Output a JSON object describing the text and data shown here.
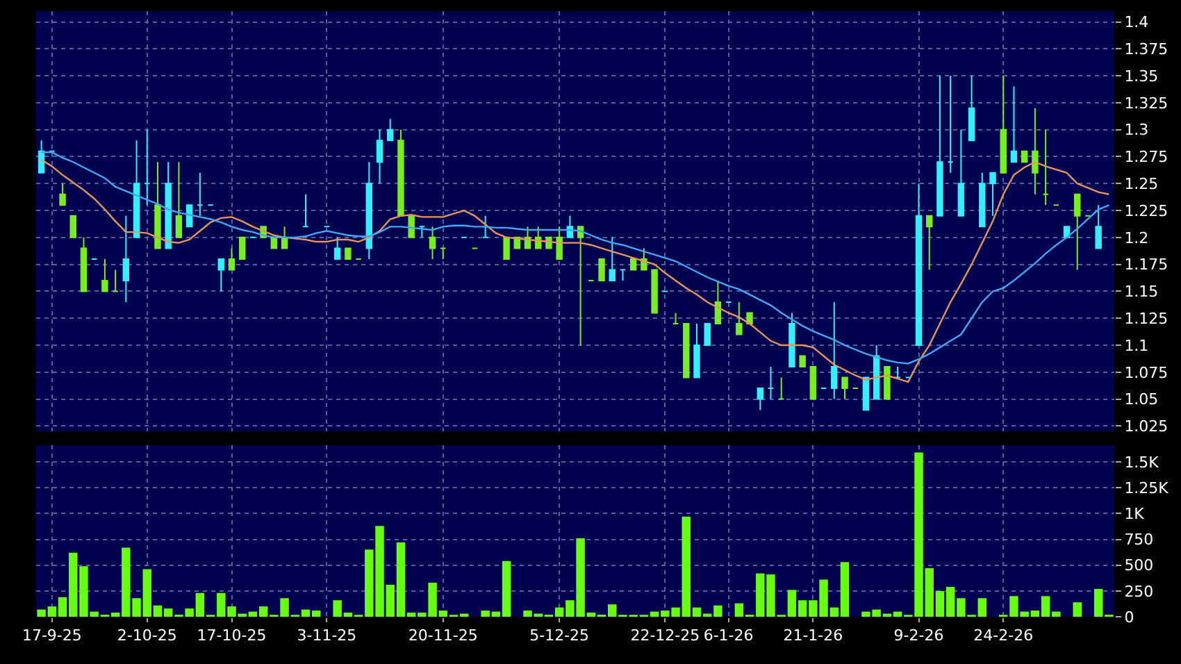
{
  "chart_data": [
    {
      "type": "candlestick",
      "ohlc": [
        [
          1.26,
          1.29,
          1.26,
          1.28
        ],
        [
          1.28,
          1.28,
          1.28,
          1.28
        ],
        [
          1.24,
          1.25,
          1.23,
          1.23
        ],
        [
          1.22,
          1.22,
          1.2,
          1.2
        ],
        [
          1.19,
          1.2,
          1.15,
          1.15
        ],
        [
          1.18,
          1.18,
          1.18,
          1.18
        ],
        [
          1.16,
          1.18,
          1.15,
          1.15
        ],
        [
          1.15,
          1.17,
          1.15,
          1.15
        ],
        [
          1.16,
          1.22,
          1.14,
          1.18
        ],
        [
          1.2,
          1.29,
          1.2,
          1.25
        ],
        [
          1.25,
          1.3,
          1.23,
          1.25
        ],
        [
          1.23,
          1.27,
          1.19,
          1.19
        ],
        [
          1.19,
          1.27,
          1.19,
          1.25
        ],
        [
          1.22,
          1.27,
          1.2,
          1.2
        ],
        [
          1.21,
          1.23,
          1.21,
          1.23
        ],
        [
          1.23,
          1.26,
          1.22,
          1.23
        ],
        [
          1.23,
          1.23,
          1.23,
          1.23
        ],
        [
          1.17,
          1.18,
          1.15,
          1.18
        ],
        [
          1.18,
          1.19,
          1.17,
          1.17
        ],
        [
          1.2,
          1.2,
          1.18,
          1.18
        ],
        [
          1.2,
          1.2,
          1.2,
          1.2
        ],
        [
          1.21,
          1.21,
          1.2,
          1.2
        ],
        [
          1.2,
          1.2,
          1.19,
          1.19
        ],
        [
          1.2,
          1.21,
          1.19,
          1.19
        ],
        null,
        [
          1.21,
          1.24,
          1.21,
          1.21
        ],
        null,
        [
          1.21,
          1.21,
          1.21,
          1.21
        ],
        [
          1.18,
          1.2,
          1.18,
          1.19
        ],
        [
          1.19,
          1.19,
          1.18,
          1.18
        ],
        [
          1.18,
          1.18,
          1.18,
          1.18
        ],
        [
          1.19,
          1.27,
          1.18,
          1.25
        ],
        [
          1.27,
          1.3,
          1.25,
          1.29
        ],
        [
          1.29,
          1.31,
          1.29,
          1.3
        ],
        [
          1.29,
          1.3,
          1.22,
          1.22
        ],
        [
          1.22,
          1.22,
          1.2,
          1.2
        ],
        [
          1.21,
          1.21,
          1.2,
          1.21
        ],
        [
          1.2,
          1.21,
          1.18,
          1.19
        ],
        [
          1.19,
          1.19,
          1.18,
          1.19
        ],
        null,
        [
          1.2,
          1.2,
          1.2,
          1.2
        ],
        [
          1.19,
          1.19,
          1.19,
          1.19
        ],
        [
          1.2,
          1.22,
          1.2,
          1.2
        ],
        null,
        [
          1.2,
          1.2,
          1.18,
          1.18
        ],
        [
          1.2,
          1.2,
          1.19,
          1.19
        ],
        [
          1.2,
          1.21,
          1.19,
          1.19
        ],
        [
          1.2,
          1.21,
          1.19,
          1.19
        ],
        [
          1.2,
          1.2,
          1.19,
          1.19
        ],
        [
          1.2,
          1.21,
          1.18,
          1.18
        ],
        [
          1.2,
          1.22,
          1.2,
          1.21
        ],
        [
          1.21,
          1.21,
          1.1,
          1.2
        ],
        [
          1.16,
          1.16,
          1.16,
          1.16
        ],
        [
          1.18,
          1.18,
          1.16,
          1.16
        ],
        [
          1.16,
          1.2,
          1.16,
          1.17
        ],
        [
          1.17,
          1.17,
          1.16,
          1.17
        ],
        [
          1.18,
          1.18,
          1.17,
          1.17
        ],
        [
          1.18,
          1.19,
          1.17,
          1.17
        ],
        [
          1.17,
          1.17,
          1.13,
          1.13
        ],
        [
          1.15,
          1.15,
          1.15,
          1.15
        ],
        [
          1.12,
          1.13,
          1.12,
          1.12
        ],
        [
          1.12,
          1.12,
          1.07,
          1.07
        ],
        [
          1.07,
          1.12,
          1.07,
          1.1
        ],
        [
          1.1,
          1.12,
          1.1,
          1.12
        ],
        [
          1.14,
          1.16,
          1.12,
          1.12
        ],
        [
          1.14,
          1.14,
          1.14,
          1.14
        ],
        [
          1.12,
          1.14,
          1.11,
          1.11
        ],
        [
          1.13,
          1.13,
          1.12,
          1.12
        ],
        [
          1.05,
          1.06,
          1.04,
          1.06
        ],
        [
          1.06,
          1.08,
          1.05,
          1.06
        ],
        [
          1.05,
          1.07,
          1.05,
          1.05
        ],
        [
          1.08,
          1.13,
          1.08,
          1.12
        ],
        [
          1.09,
          1.09,
          1.08,
          1.08
        ],
        [
          1.08,
          1.08,
          1.05,
          1.05
        ],
        [
          1.06,
          1.06,
          1.06,
          1.06
        ],
        [
          1.06,
          1.14,
          1.05,
          1.08
        ],
        [
          1.07,
          1.07,
          1.05,
          1.06
        ],
        [
          1.06,
          1.06,
          1.06,
          1.06
        ],
        [
          1.04,
          1.07,
          1.04,
          1.07
        ],
        [
          1.05,
          1.1,
          1.05,
          1.09
        ],
        [
          1.08,
          1.08,
          1.05,
          1.05
        ],
        [
          1.07,
          1.08,
          1.07,
          1.07
        ],
        [
          1.07,
          1.07,
          1.07,
          1.07
        ],
        [
          1.1,
          1.25,
          1.1,
          1.22
        ],
        [
          1.22,
          1.22,
          1.17,
          1.21
        ],
        [
          1.22,
          1.35,
          1.22,
          1.27
        ],
        [
          1.27,
          1.35,
          1.26,
          1.27
        ],
        [
          1.22,
          1.3,
          1.22,
          1.25
        ],
        [
          1.29,
          1.35,
          1.29,
          1.32
        ],
        [
          1.21,
          1.26,
          1.21,
          1.25
        ],
        [
          1.25,
          1.26,
          1.22,
          1.26
        ],
        [
          1.3,
          1.35,
          1.26,
          1.26
        ],
        [
          1.27,
          1.34,
          1.27,
          1.28
        ],
        [
          1.28,
          1.28,
          1.27,
          1.27
        ],
        [
          1.28,
          1.32,
          1.24,
          1.26
        ],
        [
          1.24,
          1.3,
          1.23,
          1.24
        ],
        [
          1.23,
          1.23,
          1.23,
          1.23
        ],
        [
          1.2,
          1.21,
          1.2,
          1.21
        ],
        [
          1.24,
          1.24,
          1.17,
          1.22
        ],
        [
          1.22,
          1.22,
          1.22,
          1.22
        ],
        [
          1.19,
          1.23,
          1.19,
          1.21
        ],
        null
      ],
      "series": [
        {
          "type": "line",
          "color": "#e8955a",
          "values": [
            1.272,
            1.266,
            1.258,
            1.251,
            1.244,
            1.236,
            1.226,
            1.215,
            1.205,
            1.205,
            1.204,
            1.2,
            1.196,
            1.195,
            1.198,
            1.206,
            1.214,
            1.218,
            1.219,
            1.215,
            1.21,
            1.206,
            1.202,
            1.2,
            1.199,
            1.198,
            1.196,
            1.196,
            1.198,
            1.198,
            1.196,
            1.2,
            1.206,
            1.217,
            1.22,
            1.221,
            1.219,
            1.219,
            1.219,
            1.222,
            1.225,
            1.22,
            1.212,
            1.204,
            1.2,
            1.199,
            1.198,
            1.197,
            1.196,
            1.195,
            1.195,
            1.195,
            1.193,
            1.19,
            1.187,
            1.184,
            1.181,
            1.178,
            1.175,
            1.167,
            1.16,
            1.153,
            1.147,
            1.14,
            1.135,
            1.13,
            1.126,
            1.12,
            1.112,
            1.104,
            1.1,
            1.1,
            1.1,
            1.098,
            1.09,
            1.082,
            1.077,
            1.072,
            1.068,
            1.07,
            1.072,
            1.069,
            1.066,
            1.085,
            1.1,
            1.12,
            1.14,
            1.157,
            1.175,
            1.195,
            1.215,
            1.24,
            1.258,
            1.265,
            1.27,
            1.266,
            1.263,
            1.26,
            1.25,
            1.246,
            1.242,
            1.24
          ]
        },
        {
          "type": "line",
          "color": "#3fa9f5",
          "values": [
            1.279,
            1.279,
            1.274,
            1.27,
            1.265,
            1.26,
            1.255,
            1.247,
            1.243,
            1.239,
            1.235,
            1.231,
            1.226,
            1.223,
            1.221,
            1.219,
            1.217,
            1.214,
            1.21,
            1.207,
            1.205,
            1.202,
            1.2,
            1.2,
            1.2,
            1.201,
            1.204,
            1.206,
            1.204,
            1.202,
            1.201,
            1.201,
            1.205,
            1.21,
            1.21,
            1.209,
            1.208,
            1.207,
            1.21,
            1.211,
            1.211,
            1.21,
            1.21,
            1.209,
            1.209,
            1.208,
            1.207,
            1.207,
            1.207,
            1.207,
            1.207,
            1.206,
            1.202,
            1.198,
            1.195,
            1.193,
            1.19,
            1.187,
            1.184,
            1.181,
            1.178,
            1.173,
            1.168,
            1.163,
            1.159,
            1.155,
            1.152,
            1.147,
            1.142,
            1.137,
            1.13,
            1.124,
            1.118,
            1.113,
            1.109,
            1.105,
            1.1,
            1.096,
            1.092,
            1.089,
            1.086,
            1.084,
            1.083,
            1.087,
            1.092,
            1.098,
            1.104,
            1.11,
            1.125,
            1.14,
            1.15,
            1.153,
            1.16,
            1.168,
            1.176,
            1.185,
            1.193,
            1.2,
            1.208,
            1.217,
            1.226,
            1.23
          ]
        }
      ],
      "ylim": [
        1.02,
        1.41
      ],
      "yticks": [
        1.025,
        1.05,
        1.075,
        1.1,
        1.125,
        1.15,
        1.175,
        1.2,
        1.225,
        1.25,
        1.275,
        1.3,
        1.325,
        1.35,
        1.375,
        1.4
      ],
      "grid": true,
      "tick_labels": "y"
    },
    {
      "type": "bar",
      "categories": [
        null,
        "17-9-25",
        null,
        null,
        null,
        null,
        null,
        null,
        null,
        null,
        "2-10-25",
        null,
        null,
        null,
        null,
        null,
        null,
        null,
        "17-10-25",
        null,
        null,
        null,
        null,
        null,
        null,
        null,
        null,
        "3-11-25",
        null,
        null,
        null,
        null,
        null,
        null,
        null,
        null,
        null,
        null,
        "20-11-25",
        null,
        null,
        null,
        null,
        null,
        null,
        null,
        null,
        null,
        null,
        "5-12-25",
        null,
        null,
        null,
        null,
        null,
        null,
        null,
        null,
        null,
        "22-12-25",
        null,
        null,
        null,
        null,
        null,
        "6-1-26",
        null,
        null,
        null,
        null,
        null,
        null,
        null,
        "21-1-26",
        null,
        null,
        null,
        null,
        null,
        null,
        null,
        null,
        null,
        "9-2-26",
        null,
        null,
        null,
        null,
        null,
        null,
        null,
        "24-2-26",
        null,
        null,
        null,
        null,
        null,
        null,
        null,
        null,
        null,
        null
      ],
      "values": [
        70,
        100,
        190,
        620,
        490,
        50,
        20,
        40,
        670,
        180,
        460,
        110,
        80,
        20,
        80,
        230,
        10,
        230,
        100,
        30,
        50,
        100,
        10,
        180,
        10,
        70,
        60,
        0,
        160,
        40,
        10,
        650,
        880,
        310,
        720,
        40,
        40,
        330,
        60,
        10,
        30,
        0,
        60,
        50,
        540,
        0,
        60,
        30,
        20,
        90,
        160,
        760,
        40,
        20,
        120,
        10,
        10,
        10,
        50,
        60,
        90,
        970,
        90,
        30,
        110,
        0,
        130,
        20,
        420,
        410,
        10,
        260,
        160,
        160,
        360,
        90,
        530,
        0,
        50,
        70,
        30,
        50,
        10,
        1590,
        470,
        250,
        290,
        180,
        10,
        180,
        0,
        10,
        200,
        50,
        60,
        200,
        50,
        0,
        140,
        0,
        270,
        20
      ],
      "color": "#66ff11",
      "ylim": [
        0,
        1660
      ],
      "yticks": [
        0,
        250,
        500,
        750,
        {
          "value": 1000,
          "label": "1K"
        },
        {
          "value": 1250,
          "label": "1.25K"
        },
        {
          "value": 1500,
          "label": "1.5K"
        }
      ],
      "grid": true
    }
  ]
}
